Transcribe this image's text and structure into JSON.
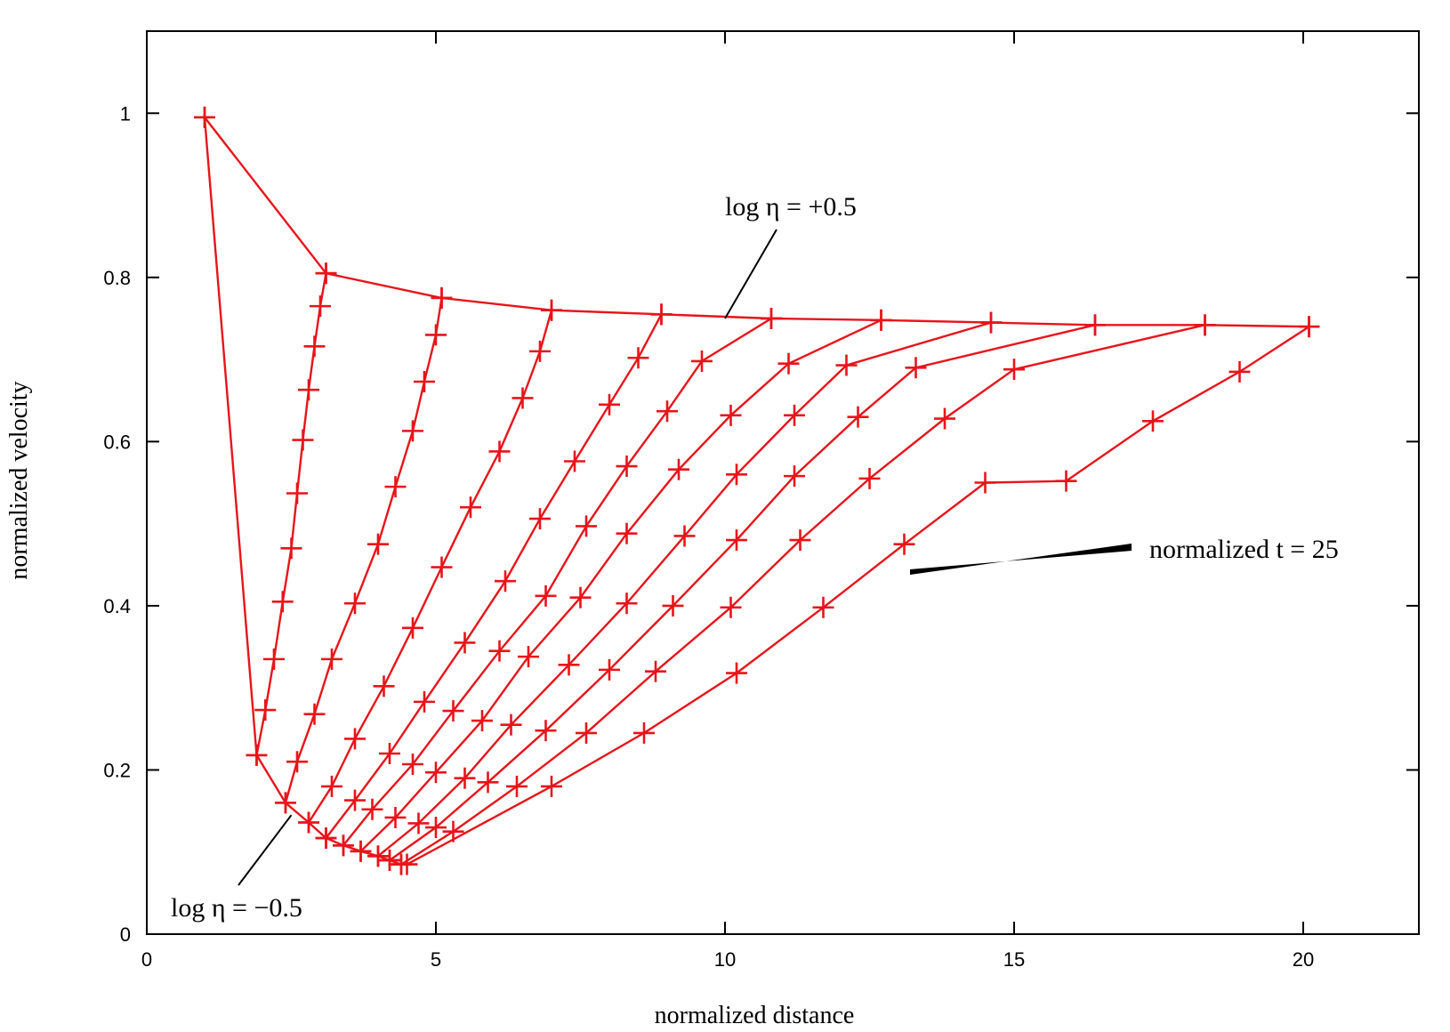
{
  "chart_data": {
    "type": "line",
    "title": "",
    "xlabel": "normalized distance",
    "ylabel": "normalized velocity",
    "xlim": [
      0,
      22
    ],
    "ylim": [
      0,
      1.1
    ],
    "x_ticks": [
      0,
      5,
      10,
      15,
      20
    ],
    "y_ticks": [
      0,
      0.2,
      0.4,
      0.6,
      0.8,
      1
    ],
    "x_tick_labels": [
      "0",
      "5",
      "10",
      "15",
      "20"
    ],
    "y_tick_labels": [
      "0",
      "0.2",
      "0.4",
      "0.6",
      "0.8",
      "1"
    ],
    "grid": false,
    "legend": "none",
    "line_color": "#e8141a",
    "series": [
      {
        "x": [
          1.0,
          3.1,
          5.1,
          7.0,
          8.9,
          10.8,
          12.7,
          14.6,
          16.4,
          18.3,
          20.1
        ],
        "y": [
          0.995,
          0.805,
          0.775,
          0.76,
          0.755,
          0.75,
          0.748,
          0.745,
          0.742,
          0.742,
          0.74
        ]
      },
      {
        "x": [
          1.0,
          1.9,
          2.4,
          2.8,
          3.1,
          3.4,
          3.7,
          4.0,
          4.2,
          4.4
        ],
        "y": [
          0.995,
          0.218,
          0.16,
          0.136,
          0.117,
          0.108,
          0.101,
          0.095,
          0.09,
          0.085
        ]
      },
      {
        "x": [
          1.9,
          2.05,
          2.2,
          2.35,
          2.5,
          2.6,
          2.7,
          2.8,
          2.9,
          3.0,
          3.1
        ],
        "y": [
          0.218,
          0.273,
          0.335,
          0.405,
          0.47,
          0.537,
          0.602,
          0.663,
          0.716,
          0.765,
          0.805
        ]
      },
      {
        "x": [
          2.4,
          2.6,
          2.9,
          3.2,
          3.6,
          4.0,
          4.3,
          4.6,
          4.8,
          5.0,
          5.1
        ],
        "y": [
          0.16,
          0.21,
          0.268,
          0.335,
          0.403,
          0.475,
          0.545,
          0.613,
          0.673,
          0.73,
          0.775
        ]
      },
      {
        "x": [
          2.8,
          3.2,
          3.6,
          4.1,
          4.6,
          5.1,
          5.6,
          6.1,
          6.5,
          6.8,
          7.0
        ],
        "y": [
          0.136,
          0.18,
          0.238,
          0.302,
          0.373,
          0.447,
          0.52,
          0.588,
          0.653,
          0.71,
          0.76
        ]
      },
      {
        "x": [
          3.1,
          3.6,
          4.2,
          4.8,
          5.5,
          6.2,
          6.8,
          7.4,
          8.0,
          8.5,
          8.9
        ],
        "y": [
          0.117,
          0.163,
          0.22,
          0.283,
          0.355,
          0.43,
          0.506,
          0.576,
          0.645,
          0.702,
          0.755
        ]
      },
      {
        "x": [
          3.4,
          3.9,
          4.6,
          5.3,
          6.1,
          6.9,
          7.6,
          8.3,
          9.0,
          9.6,
          10.8
        ],
        "y": [
          0.108,
          0.152,
          0.207,
          0.272,
          0.345,
          0.412,
          0.497,
          0.57,
          0.637,
          0.698,
          0.75
        ]
      },
      {
        "x": [
          3.7,
          4.3,
          5.0,
          5.8,
          6.6,
          7.5,
          8.3,
          9.2,
          10.1,
          11.1,
          12.7
        ],
        "y": [
          0.101,
          0.142,
          0.197,
          0.26,
          0.338,
          0.41,
          0.488,
          0.566,
          0.632,
          0.695,
          0.748
        ]
      },
      {
        "x": [
          4.0,
          4.7,
          5.5,
          6.3,
          7.3,
          8.3,
          9.3,
          10.2,
          11.2,
          12.1,
          14.6
        ],
        "y": [
          0.095,
          0.135,
          0.19,
          0.255,
          0.328,
          0.403,
          0.485,
          0.56,
          0.632,
          0.693,
          0.745
        ]
      },
      {
        "x": [
          4.2,
          5.0,
          5.9,
          6.9,
          8.0,
          9.1,
          10.2,
          11.2,
          12.3,
          13.3,
          16.4
        ],
        "y": [
          0.09,
          0.13,
          0.185,
          0.248,
          0.322,
          0.4,
          0.48,
          0.558,
          0.63,
          0.69,
          0.742
        ]
      },
      {
        "x": [
          4.4,
          5.3,
          6.4,
          7.6,
          8.8,
          10.1,
          11.3,
          12.5,
          13.8,
          15.0,
          18.3
        ],
        "y": [
          0.085,
          0.125,
          0.18,
          0.245,
          0.32,
          0.398,
          0.48,
          0.555,
          0.628,
          0.688,
          0.742
        ]
      },
      {
        "x": [
          4.5,
          7.0,
          8.6,
          10.2,
          11.7,
          13.1,
          14.5,
          15.9,
          17.4,
          18.9,
          20.1
        ],
        "y": [
          0.085,
          0.18,
          0.245,
          0.318,
          0.398,
          0.475,
          0.55,
          0.552,
          0.625,
          0.685,
          0.74
        ]
      }
    ],
    "annotations": [
      {
        "text": "log η = +0.5",
        "point_x": 10.0,
        "point_y": 0.75
      },
      {
        "text": "normalized t = 25",
        "point_x": 13.2,
        "point_y": 0.44
      },
      {
        "text": "log η = −0.5",
        "point_x": 2.5,
        "point_y": 0.145
      }
    ]
  }
}
